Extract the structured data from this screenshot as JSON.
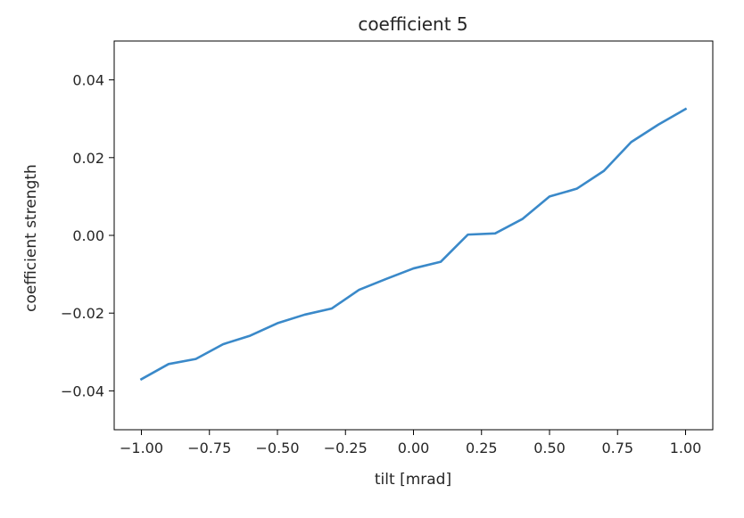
{
  "chart_data": {
    "type": "line",
    "title": "coefficient 5",
    "xlabel": "tilt [mrad]",
    "ylabel": "coefficient strength",
    "xlim": [
      -1.1,
      1.1
    ],
    "ylim": [
      -0.05,
      0.05
    ],
    "xticks": [
      -1.0,
      -0.75,
      -0.5,
      -0.25,
      0.0,
      0.25,
      0.5,
      0.75,
      1.0
    ],
    "xtick_labels": [
      "−1.00",
      "−0.75",
      "−0.50",
      "−0.25",
      "0.00",
      "0.25",
      "0.50",
      "0.75",
      "1.00"
    ],
    "yticks": [
      -0.04,
      -0.02,
      0.0,
      0.02,
      0.04
    ],
    "ytick_labels": [
      "−0.04",
      "−0.02",
      "0.00",
      "0.02",
      "0.04"
    ],
    "grid": false,
    "color": "#3a89c9",
    "series": [
      {
        "x": [
          -1.0,
          -0.9,
          -0.8,
          -0.7,
          -0.6,
          -0.5,
          -0.4,
          -0.3,
          -0.2,
          -0.1,
          0.0,
          0.1,
          0.2,
          0.3,
          0.4,
          0.5,
          0.6,
          0.7,
          0.8,
          0.9,
          1.0
        ],
        "y": [
          -0.037,
          -0.0331,
          -0.0318,
          -0.028,
          -0.0258,
          -0.0226,
          -0.0204,
          -0.0188,
          -0.014,
          -0.0112,
          -0.0085,
          -0.0068,
          0.0002,
          0.0005,
          0.0042,
          0.01,
          0.012,
          0.0166,
          0.024,
          0.0285,
          0.0325
        ]
      }
    ]
  }
}
